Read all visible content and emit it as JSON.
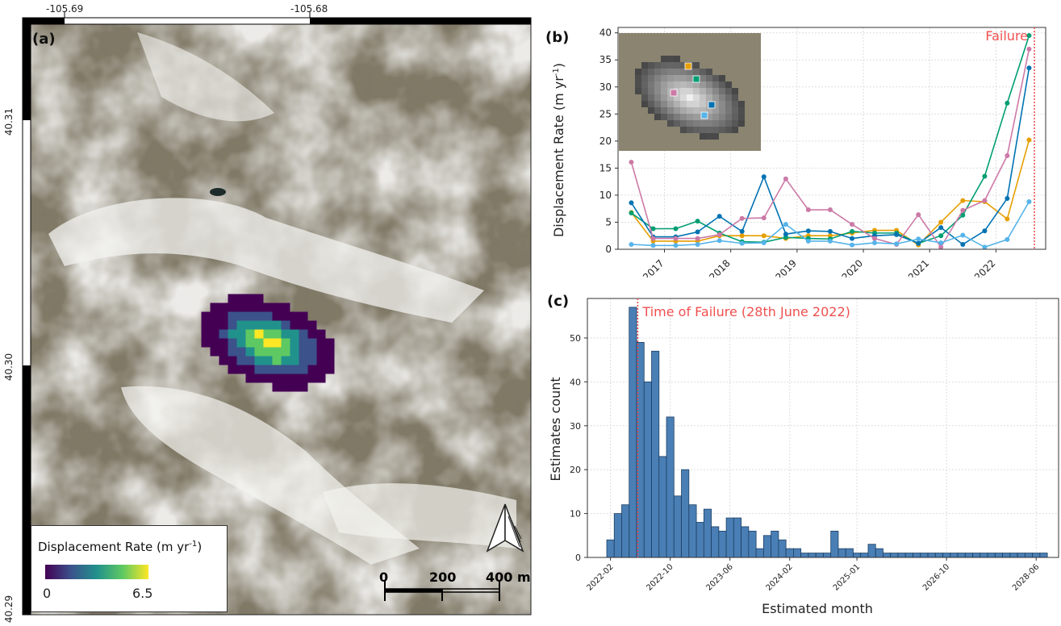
{
  "panels": {
    "a": {
      "label": "(a)",
      "lon_ticks": [
        "-105.69",
        "-105.68"
      ],
      "lat_ticks": [
        "40.31",
        "40.30",
        "40.29"
      ],
      "legend": {
        "title": "Displacement Rate (m yr",
        "sup": "-1",
        "title_end": ")",
        "min": "0",
        "max": "6.5"
      },
      "scale_bar": {
        "labels": [
          "0",
          "200",
          "400 m"
        ]
      },
      "colormap": [
        "#440154",
        "#3b528b",
        "#21918c",
        "#5ec962",
        "#fde725"
      ]
    },
    "b": {
      "label": "(b)"
    },
    "c": {
      "label": "(c)"
    }
  },
  "chart_data": [
    {
      "type": "line",
      "panel": "b",
      "ylabel": "Displacement Rate (m yr",
      "ylabel_sup": "-1",
      "ylabel_end": ")",
      "ylim": [
        0,
        41
      ],
      "xlim": [
        2016.3,
        2022.75
      ],
      "x_ticks": [
        "2017",
        "2018",
        "2019",
        "2020",
        "2021",
        "2022"
      ],
      "y_ticks": [
        "0",
        "5",
        "10",
        "15",
        "20",
        "25",
        "30",
        "35",
        "40"
      ],
      "grid": true,
      "annotation": {
        "text": "Failure",
        "x": 2022.58,
        "color": "#f05050"
      },
      "series": [
        {
          "color": "#e69f00",
          "x": [
            2016.5,
            2016.83,
            2017.17,
            2017.5,
            2017.83,
            2018.17,
            2018.5,
            2018.83,
            2019.17,
            2019.5,
            2019.83,
            2020.17,
            2020.5,
            2020.83,
            2021.17,
            2021.5,
            2021.83,
            2022.17,
            2022.5
          ],
          "y": [
            6.8,
            1.5,
            1.5,
            1.5,
            2.5,
            2.5,
            2.5,
            2.0,
            2.5,
            2.5,
            3.0,
            3.5,
            3.5,
            0.8,
            5.0,
            9.0,
            8.8,
            5.6,
            20.2
          ]
        },
        {
          "color": "#009e73",
          "x": [
            2016.5,
            2016.83,
            2017.17,
            2017.5,
            2017.83,
            2018.17,
            2018.5,
            2018.83,
            2019.17,
            2019.5,
            2019.83,
            2020.17,
            2020.5,
            2020.83,
            2021.17,
            2021.5,
            2021.83,
            2022.17,
            2022.5
          ],
          "y": [
            6.7,
            3.8,
            3.8,
            5.2,
            3.0,
            1.4,
            1.3,
            2.2,
            2.0,
            1.9,
            3.3,
            3.0,
            3.0,
            1.1,
            2.5,
            6.3,
            13.5,
            27.0,
            39.5
          ]
        },
        {
          "color": "#0072b2",
          "x": [
            2016.5,
            2016.83,
            2017.17,
            2017.5,
            2017.83,
            2018.17,
            2018.5,
            2018.83,
            2019.17,
            2019.5,
            2019.83,
            2020.17,
            2020.5,
            2020.83,
            2021.17,
            2021.5,
            2021.83,
            2022.17,
            2022.5
          ],
          "y": [
            8.6,
            2.3,
            2.3,
            3.2,
            6.1,
            3.3,
            13.4,
            2.8,
            3.4,
            3.3,
            2.0,
            2.5,
            2.7,
            1.1,
            4.0,
            0.9,
            3.4,
            9.4,
            33.5
          ]
        },
        {
          "color": "#cc79a7",
          "x": [
            2016.5,
            2016.83,
            2017.17,
            2017.5,
            2017.83,
            2018.17,
            2018.5,
            2018.83,
            2019.17,
            2019.5,
            2019.83,
            2020.17,
            2020.5,
            2020.83,
            2021.17,
            2021.5,
            2021.83,
            2022.17,
            2022.5
          ],
          "y": [
            16.1,
            2.0,
            2.0,
            2.0,
            2.7,
            5.7,
            5.8,
            13.0,
            7.3,
            7.3,
            4.6,
            2.0,
            0.9,
            6.4,
            0.4,
            7.2,
            9.0,
            17.3,
            37.0
          ]
        },
        {
          "color": "#56b4e9",
          "x": [
            2016.5,
            2016.83,
            2017.17,
            2017.5,
            2017.83,
            2018.17,
            2018.5,
            2018.83,
            2019.17,
            2019.5,
            2019.83,
            2020.17,
            2020.5,
            2020.83,
            2021.17,
            2021.5,
            2021.83,
            2022.17,
            2022.5
          ],
          "y": [
            0.9,
            0.7,
            0.7,
            0.9,
            1.6,
            1.1,
            1.2,
            4.6,
            1.5,
            1.5,
            0.8,
            1.2,
            1.0,
            1.9,
            1.2,
            2.6,
            0.4,
            1.8,
            8.8
          ]
        }
      ],
      "inset_markers": [
        {
          "color": "#e69f00"
        },
        {
          "color": "#009e73"
        },
        {
          "color": "#0072b2"
        },
        {
          "color": "#cc79a7"
        },
        {
          "color": "#56b4e9"
        }
      ]
    },
    {
      "type": "bar",
      "panel": "c",
      "xlabel": "Estimated month",
      "ylabel": "Estimates count",
      "ylim": [
        0,
        59
      ],
      "y_ticks": [
        "0",
        "10",
        "20",
        "30",
        "40",
        "50"
      ],
      "x_tick_labels": [
        "2022-02",
        "2022-10",
        "2023-06",
        "2024-02",
        "2025-01",
        "2026-10",
        "2028-06"
      ],
      "grid": true,
      "bar_color": "#4a7fb5",
      "annotation": {
        "text": "Time of Failure (28th June 2022)",
        "color": "#f05050"
      },
      "values": [
        4,
        10,
        12,
        57,
        49,
        40,
        47,
        23,
        32,
        14,
        20,
        12,
        8,
        11,
        7,
        6,
        9,
        9,
        7,
        6,
        2,
        5,
        6,
        4,
        2,
        2,
        1,
        1,
        1,
        1,
        6,
        2,
        2,
        1,
        1,
        3,
        2,
        1,
        1,
        1,
        1,
        1,
        1,
        1,
        1,
        1,
        1,
        1,
        1,
        1,
        1,
        1,
        1,
        1,
        1,
        1,
        1,
        1,
        1
      ]
    }
  ]
}
